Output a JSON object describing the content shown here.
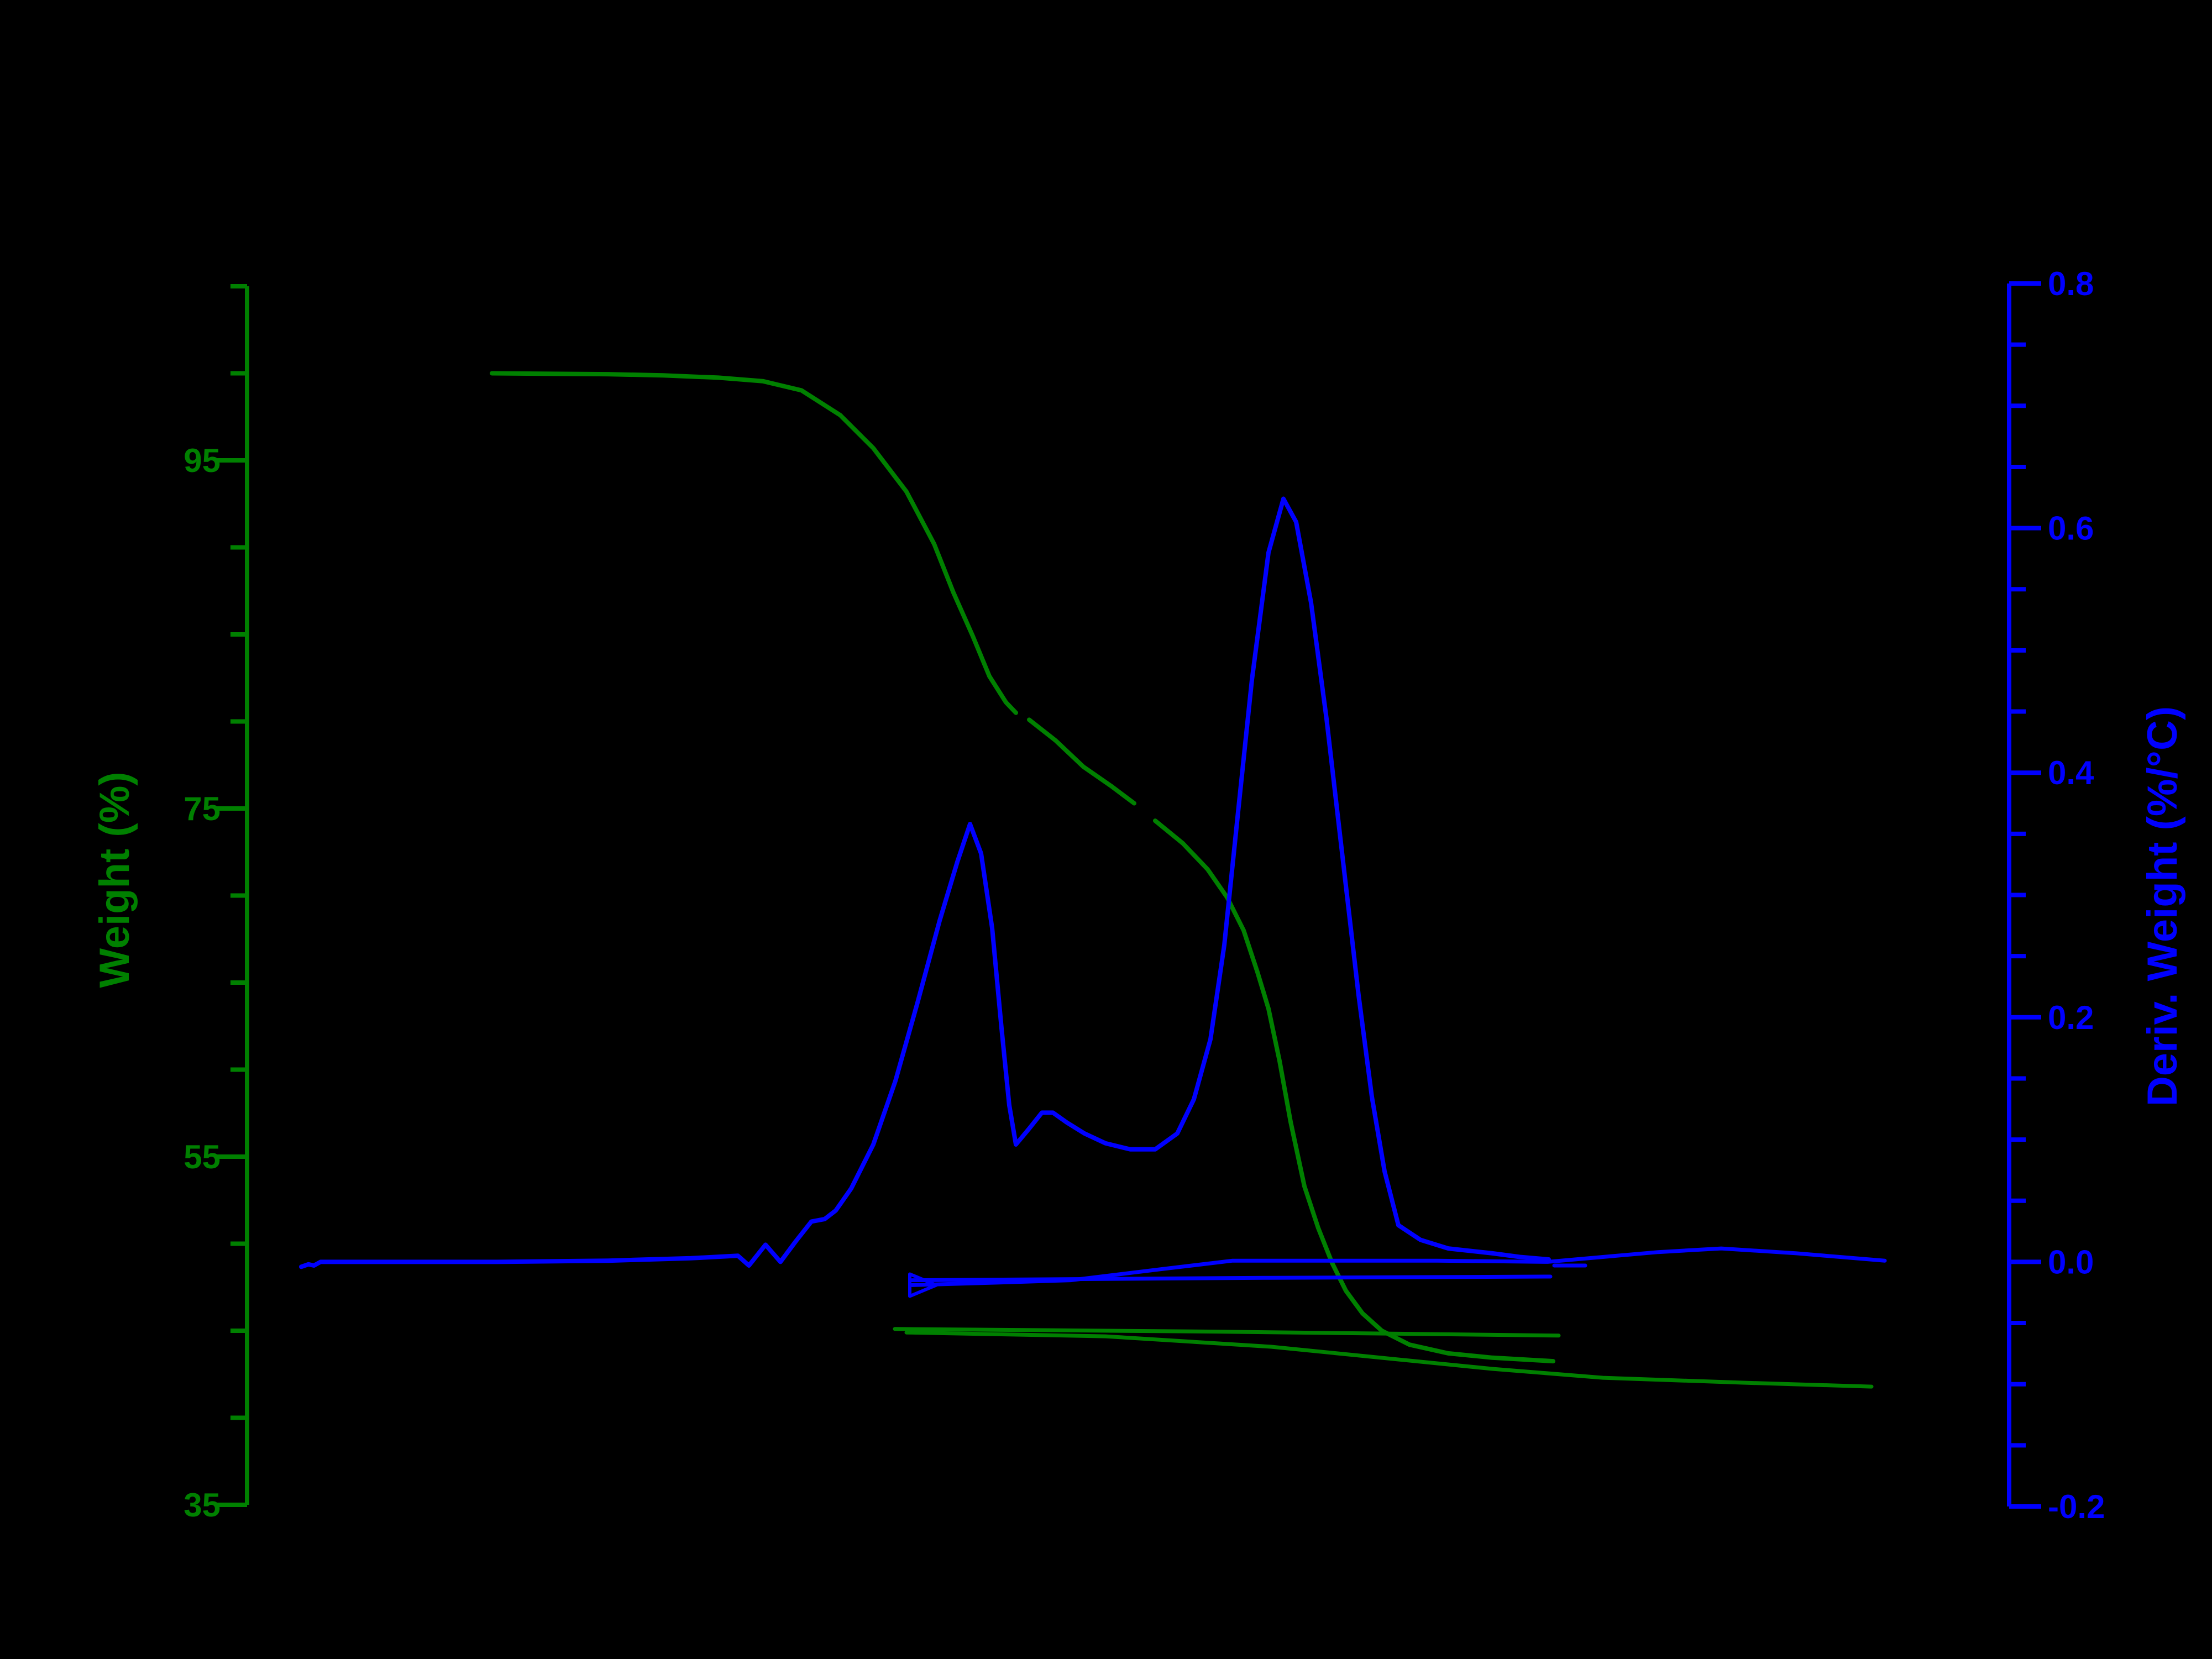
{
  "chart_data": {
    "type": "line",
    "title": "",
    "background_color": "#000000",
    "grid": false,
    "legend": "none",
    "x_axis": {
      "visible": false,
      "note": "No x-axis line, ticks or labels are visible in the image (black on black); series x-coordinates are therefore given in image pixel units (plot spans ~447px to ~3635px)."
    },
    "left_axis": {
      "label": "Weight (%)",
      "color": "#008000",
      "tick_labels": [
        "95",
        "75",
        "55",
        "35"
      ],
      "minor_tick_step": 5,
      "range_top": 105,
      "range_bottom": 35,
      "side": "left"
    },
    "right_axis": {
      "label": "Deriv. Weight (%/°C)",
      "color": "#0000ff",
      "tick_labels": [
        "0.8",
        "0.6",
        "0.4",
        "0.2",
        "0.0",
        "-0.2"
      ],
      "minor_tick_step": 0.05,
      "range_top": 0.8,
      "range_bottom": -0.2,
      "side": "right"
    },
    "key_values": {
      "initial_weight_pct": 100.0,
      "plateau_weight_pct": 80.1,
      "residue_weight_pct": 43.3,
      "second_run_final_weight_pct": 41.8,
      "dtg_peak1": 0.36,
      "dtg_valley": 0.095,
      "dtg_shoulder_bump": 0.12,
      "dtg_peak2": 0.62
    },
    "series": [
      {
        "name": "weight-main-run",
        "axis": "left",
        "color": "#008000",
        "width": 8,
        "segments": [
          [
            [
              890,
              100
            ],
            [
              1000,
              99.97
            ],
            [
              1100,
              99.95
            ],
            [
              1200,
              99.88
            ],
            [
              1300,
              99.75
            ],
            [
              1380,
              99.55
            ],
            [
              1450,
              99.02
            ],
            [
              1520,
              97.6
            ],
            [
              1580,
              95.7
            ],
            [
              1640,
              93.2
            ],
            [
              1690,
              90.2
            ],
            [
              1725,
              87.4
            ],
            [
              1760,
              84.9
            ],
            [
              1790,
              82.6
            ],
            [
              1820,
              81.1
            ],
            [
              1838,
              80.5
            ]
          ],
          [
            [
              1862,
              80.1
            ],
            [
              1910,
              78.9
            ],
            [
              1960,
              77.4
            ],
            [
              2010,
              76.3
            ],
            [
              2052,
              75.3
            ]
          ],
          [
            [
              2090,
              74.3
            ],
            [
              2140,
              73.0
            ],
            [
              2185,
              71.5
            ],
            [
              2220,
              69.9
            ],
            [
              2250,
              68.0
            ],
            [
              2275,
              65.6
            ],
            [
              2295,
              63.5
            ],
            [
              2315,
              60.5
            ],
            [
              2335,
              57.0
            ],
            [
              2360,
              53.3
            ],
            [
              2385,
              50.9
            ],
            [
              2410,
              48.9
            ],
            [
              2435,
              47.3
            ],
            [
              2465,
              46.0
            ],
            [
              2500,
              45.0
            ],
            [
              2550,
              44.2
            ],
            [
              2620,
              43.7
            ],
            [
              2700,
              43.45
            ],
            [
              2810,
              43.25
            ]
          ]
        ]
      },
      {
        "name": "weight-residual-flat",
        "axis": "left",
        "color": "#008000",
        "width": 7,
        "segments": [
          [
            [
              1619,
              45.1
            ],
            [
              2200,
              44.95
            ],
            [
              2820,
              44.72
            ]
          ]
        ]
      },
      {
        "name": "weight-second-run",
        "axis": "left",
        "color": "#008000",
        "width": 7,
        "segments": [
          [
            [
              1640,
              44.9
            ],
            [
              2000,
              44.68
            ],
            [
              2300,
              44.08
            ],
            [
              2460,
              43.57
            ],
            [
              2700,
              42.81
            ],
            [
              2900,
              42.3
            ],
            [
              3150,
              42.02
            ],
            [
              3386,
              41.79
            ]
          ]
        ]
      },
      {
        "name": "deriv-main-run",
        "axis": "right",
        "color": "#0000ff",
        "width": 8,
        "segments": [
          [
            [
              545,
              -0.004
            ],
            [
              558,
              -0.002
            ],
            [
              568,
              -0.003
            ],
            [
              580,
              0
            ],
            [
              700,
              0
            ],
            [
              900,
              0
            ],
            [
              1100,
              0.001
            ],
            [
              1250,
              0.003
            ],
            [
              1335,
              0.005
            ],
            [
              1355,
              -0.003
            ],
            [
              1385,
              0.014
            ],
            [
              1412,
              0
            ],
            [
              1440,
              0.017
            ],
            [
              1468,
              0.033
            ],
            [
              1492,
              0.035
            ],
            [
              1512,
              0.042
            ],
            [
              1540,
              0.06
            ],
            [
              1580,
              0.096
            ],
            [
              1620,
              0.148
            ],
            [
              1660,
              0.212
            ],
            [
              1700,
              0.279
            ],
            [
              1732,
              0.327
            ],
            [
              1755,
              0.358
            ],
            [
              1775,
              0.334
            ],
            [
              1795,
              0.273
            ],
            [
              1812,
              0.191
            ],
            [
              1826,
              0.128
            ],
            [
              1838,
              0.096
            ],
            [
              1862,
              0.109
            ],
            [
              1885,
              0.122
            ],
            [
              1905,
              0.122
            ],
            [
              1930,
              0.114
            ],
            [
              1962,
              0.105
            ],
            [
              2000,
              0.097
            ],
            [
              2045,
              0.092
            ],
            [
              2090,
              0.092
            ],
            [
              2130,
              0.105
            ],
            [
              2160,
              0.133
            ],
            [
              2190,
              0.182
            ],
            [
              2215,
              0.259
            ],
            [
              2240,
              0.368
            ],
            [
              2265,
              0.476
            ],
            [
              2295,
              0.58
            ],
            [
              2322,
              0.624
            ],
            [
              2345,
              0.605
            ],
            [
              2372,
              0.539
            ],
            [
              2400,
              0.444
            ],
            [
              2430,
              0.327
            ],
            [
              2458,
              0.218
            ],
            [
              2482,
              0.135
            ],
            [
              2505,
              0.074
            ],
            [
              2530,
              0.03
            ],
            [
              2570,
              0.018
            ],
            [
              2620,
              0.011
            ],
            [
              2700,
              0.007
            ],
            [
              2750,
              0.004
            ],
            [
              2802,
              0.002
            ]
          ]
        ]
      },
      {
        "name": "deriv-second-run",
        "axis": "right",
        "color": "#0000ff",
        "width": 7,
        "start_marker": "right-arrow",
        "segments": [
          [
            [
              1650,
              -0.019
            ],
            [
              1800,
              -0.017
            ],
            [
              1937,
              -0.015
            ],
            [
              2100,
              -0.006
            ],
            [
              2230,
              0.001
            ],
            [
              2400,
              0.001
            ],
            [
              2600,
              0.001
            ],
            [
              2800,
              0
            ],
            [
              2900,
              0.004
            ],
            [
              3000,
              0.008
            ],
            [
              3114,
              0.011
            ],
            [
              3250,
              0.007
            ],
            [
              3410,
              0.001
            ]
          ]
        ]
      },
      {
        "name": "deriv-flat-segment",
        "axis": "right",
        "color": "#0000ff",
        "width": 7,
        "segments": [
          [
            [
              1650,
              -0.015
            ],
            [
              2300,
              -0.013
            ],
            [
              2805,
              -0.012
            ]
          ],
          [
            [
              2812,
              -0.003
            ],
            [
              2868,
              -0.003
            ]
          ]
        ]
      }
    ]
  }
}
